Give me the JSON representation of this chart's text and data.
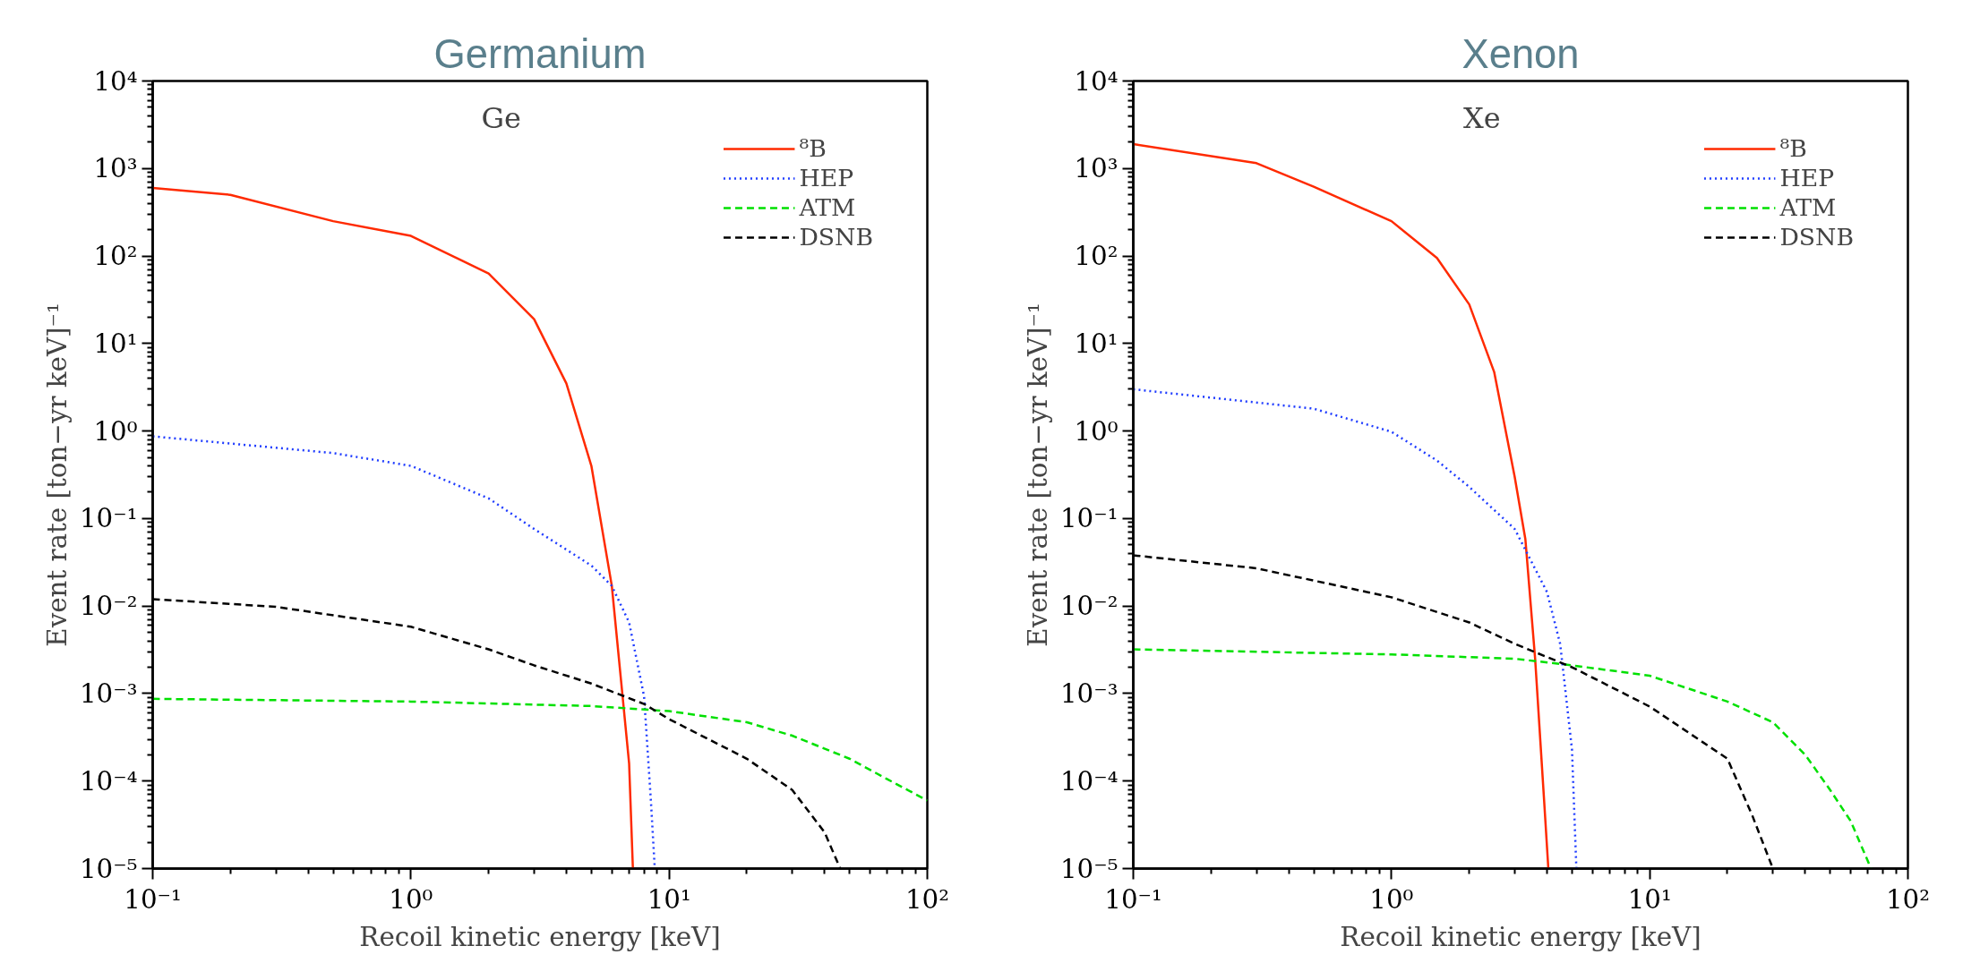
{
  "chart_data": [
    {
      "type": "line",
      "title": "Germanium",
      "xlabel": "Recoil kinetic energy [keV]",
      "ylabel": "Event rate [ton−yr keV]⁻¹",
      "annotations": [
        "Ge"
      ],
      "log": "xy",
      "xlim": [
        0.1,
        100
      ],
      "ylim": [
        1e-05,
        10000
      ],
      "xticks": [
        {
          "value": 0.1,
          "label": "10⁻¹"
        },
        {
          "value": 1,
          "label": "10⁰"
        },
        {
          "value": 10,
          "label": "10¹"
        },
        {
          "value": 100,
          "label": "10²"
        }
      ],
      "yticks": [
        {
          "value": 1e-05,
          "label": "10⁻⁵"
        },
        {
          "value": 0.0001,
          "label": "10⁻⁴"
        },
        {
          "value": 0.001,
          "label": "10⁻³"
        },
        {
          "value": 0.01,
          "label": "10⁻²"
        },
        {
          "value": 0.1,
          "label": "10⁻¹"
        },
        {
          "value": 1,
          "label": "10⁰"
        },
        {
          "value": 10,
          "label": "10¹"
        },
        {
          "value": 100,
          "label": "10²"
        },
        {
          "value": 1000,
          "label": "10³"
        },
        {
          "value": 10000,
          "label": "10⁴"
        }
      ],
      "grid": false,
      "legend": "top right",
      "series": [
        {
          "name": "⁸B",
          "color": "#ff2a00",
          "line_style": "solid",
          "x": [
            0.1,
            0.2,
            0.5,
            1,
            2,
            3,
            4,
            5,
            6,
            7,
            7.24
          ],
          "values": [
            600,
            500,
            250,
            170,
            63,
            19,
            3.5,
            0.4,
            0.017,
            0.00016,
            1e-05
          ]
        },
        {
          "name": "HEP",
          "color": "#1f3cff",
          "line_style": "dotted",
          "x": [
            0.1,
            0.5,
            1,
            2,
            3,
            5,
            6,
            7,
            8,
            8.5,
            8.8
          ],
          "values": [
            0.87,
            0.56,
            0.4,
            0.17,
            0.076,
            0.029,
            0.017,
            0.0065,
            0.00093,
            6e-05,
            1e-05
          ]
        },
        {
          "name": "ATM",
          "color": "#00e000",
          "line_style": "dashed",
          "x": [
            0.1,
            1,
            5,
            10,
            20,
            30,
            50,
            70,
            100
          ],
          "values": [
            0.00087,
            0.00081,
            0.00072,
            0.00063,
            0.00047,
            0.00033,
            0.00018,
            0.000105,
            6e-05
          ]
        },
        {
          "name": "DSNB",
          "color": "#000000",
          "line_style": "dashed",
          "x": [
            0.1,
            0.3,
            1,
            2,
            3,
            5,
            8,
            10,
            20,
            30,
            40,
            46
          ],
          "values": [
            0.012,
            0.0098,
            0.0058,
            0.0032,
            0.0021,
            0.0013,
            0.00076,
            0.00051,
            0.00018,
            7.9e-05,
            2.6e-05,
            1e-05
          ]
        }
      ]
    },
    {
      "type": "line",
      "title": "Xenon",
      "xlabel": "Recoil kinetic energy [keV]",
      "ylabel": "Event rate [ton−yr keV]⁻¹",
      "annotations": [
        "Xe"
      ],
      "log": "xy",
      "xlim": [
        0.1,
        100
      ],
      "ylim": [
        1e-05,
        10000
      ],
      "xticks": [
        {
          "value": 0.1,
          "label": "10⁻¹"
        },
        {
          "value": 1,
          "label": "10⁰"
        },
        {
          "value": 10,
          "label": "10¹"
        },
        {
          "value": 100,
          "label": "10²"
        }
      ],
      "yticks": [
        {
          "value": 1e-05,
          "label": "10⁻⁵"
        },
        {
          "value": 0.0001,
          "label": "10⁻⁴"
        },
        {
          "value": 0.001,
          "label": "10⁻³"
        },
        {
          "value": 0.01,
          "label": "10⁻²"
        },
        {
          "value": 0.1,
          "label": "10⁻¹"
        },
        {
          "value": 1,
          "label": "10⁰"
        },
        {
          "value": 10,
          "label": "10¹"
        },
        {
          "value": 100,
          "label": "10²"
        },
        {
          "value": 1000,
          "label": "10³"
        },
        {
          "value": 10000,
          "label": "10⁴"
        }
      ],
      "grid": false,
      "legend": "top right",
      "series": [
        {
          "name": "⁸B",
          "color": "#ff2a00",
          "line_style": "solid",
          "x": [
            0.1,
            0.3,
            0.5,
            1,
            1.5,
            2,
            2.5,
            3,
            3.3,
            3.6,
            3.9,
            4.05
          ],
          "values": [
            1900,
            1150,
            620,
            250,
            95,
            28,
            4.7,
            0.3,
            0.058,
            0.0025,
            6e-05,
            1e-05
          ]
        },
        {
          "name": "HEP",
          "color": "#1f3cff",
          "line_style": "dotted",
          "x": [
            0.1,
            0.5,
            1,
            1.5,
            2,
            3,
            4,
            4.5,
            5,
            5.2
          ],
          "values": [
            3.0,
            1.8,
            0.98,
            0.46,
            0.23,
            0.076,
            0.0145,
            0.0037,
            0.00023,
            1e-05
          ]
        },
        {
          "name": "ATM",
          "color": "#00e000",
          "line_style": "dashed",
          "x": [
            0.1,
            1,
            3,
            5,
            10,
            20,
            30,
            40,
            50,
            60,
            72
          ],
          "values": [
            0.0032,
            0.0028,
            0.0025,
            0.0021,
            0.0016,
            0.00081,
            0.00047,
            0.0002,
            7.9e-05,
            3.5e-05,
            1e-05
          ]
        },
        {
          "name": "DSNB",
          "color": "#000000",
          "line_style": "dashed",
          "x": [
            0.1,
            0.3,
            1,
            2,
            3,
            5,
            10,
            20,
            25,
            30
          ],
          "values": [
            0.038,
            0.027,
            0.0126,
            0.0065,
            0.0037,
            0.002,
            0.00071,
            0.00018,
            4e-05,
            1e-05
          ]
        }
      ]
    }
  ]
}
